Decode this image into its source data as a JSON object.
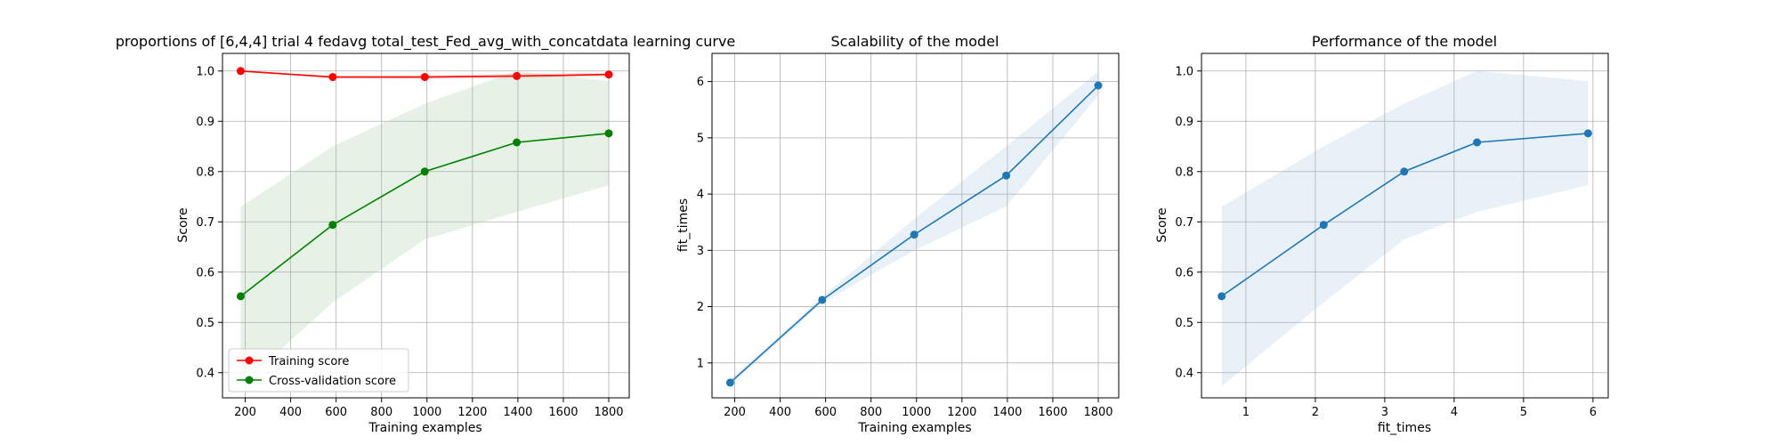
{
  "chart_data": [
    {
      "type": "line",
      "title": "proportions of [6,4,4] trial 4 fedavg total_test_Fed_avg_with_concatdata learning curve",
      "xlabel": "Training examples",
      "ylabel": "Score",
      "xlim": [
        100,
        1890
      ],
      "ylim": [
        0.35,
        1.035
      ],
      "xticks": [
        200,
        400,
        600,
        800,
        1000,
        1200,
        1400,
        1600,
        1800
      ],
      "yticks": [
        0.4,
        0.5,
        0.6,
        0.7,
        0.8,
        0.9,
        1.0
      ],
      "grid": true,
      "legend": "lower-left",
      "series": [
        {
          "name": "Training score",
          "color": "#ff0000",
          "x": [
            180,
            585,
            990,
            1395,
            1800
          ],
          "y": [
            1.0,
            0.988,
            0.988,
            0.99,
            0.993
          ],
          "band_lower": [
            1.0,
            0.985,
            0.984,
            0.985,
            0.99
          ],
          "band_upper": [
            1.0,
            0.99,
            0.992,
            0.995,
            0.997
          ]
        },
        {
          "name": "Cross-validation score",
          "color": "#008000",
          "x": [
            180,
            585,
            990,
            1395,
            1800
          ],
          "y": [
            0.552,
            0.694,
            0.8,
            0.858,
            0.876
          ],
          "band_lower": [
            0.373,
            0.54,
            0.665,
            0.72,
            0.773
          ],
          "band_upper": [
            0.73,
            0.85,
            0.935,
            1.0,
            0.98
          ]
        }
      ]
    },
    {
      "type": "line",
      "title": "Scalability of the model",
      "xlabel": "Training examples",
      "ylabel": "fit_times",
      "xlim": [
        100,
        1890
      ],
      "ylim": [
        0.38,
        6.5
      ],
      "xticks": [
        200,
        400,
        600,
        800,
        1000,
        1200,
        1400,
        1600,
        1800
      ],
      "yticks": [
        1,
        2,
        3,
        4,
        5,
        6
      ],
      "grid": true,
      "series": [
        {
          "color": "#1f77b4",
          "x": [
            180,
            585,
            990,
            1395,
            1800
          ],
          "y": [
            0.65,
            2.12,
            3.28,
            4.33,
            5.93
          ],
          "band_lower": [
            0.6,
            2.07,
            3.0,
            3.78,
            5.75
          ],
          "band_upper": [
            0.7,
            2.17,
            3.56,
            4.85,
            6.18
          ]
        }
      ]
    },
    {
      "type": "line",
      "title": "Performance of the model",
      "xlabel": "fit_times",
      "ylabel": "Score",
      "xlim": [
        0.36,
        6.22
      ],
      "ylim": [
        0.35,
        1.035
      ],
      "xticks": [
        1,
        2,
        3,
        4,
        5,
        6
      ],
      "yticks": [
        0.4,
        0.5,
        0.6,
        0.7,
        0.8,
        0.9,
        1.0
      ],
      "grid": true,
      "series": [
        {
          "color": "#1f77b4",
          "x": [
            0.65,
            2.12,
            3.28,
            4.33,
            5.93
          ],
          "y": [
            0.552,
            0.694,
            0.8,
            0.858,
            0.876
          ],
          "band_lower": [
            0.373,
            0.54,
            0.665,
            0.72,
            0.773
          ],
          "band_upper": [
            0.73,
            0.85,
            0.935,
            1.0,
            0.98
          ]
        }
      ]
    }
  ]
}
